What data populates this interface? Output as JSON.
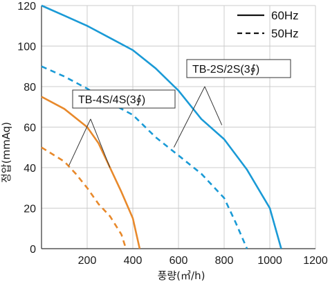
{
  "chart_data": {
    "type": "line",
    "title": "",
    "xlabel": "풍량(㎥/h)",
    "ylabel": "정압(mmAq)",
    "xlim": [
      0,
      1200
    ],
    "ylim": [
      0,
      120
    ],
    "x_ticks": [
      0,
      200,
      400,
      600,
      800,
      1000,
      1200
    ],
    "y_ticks": [
      0,
      20,
      40,
      60,
      80,
      100,
      120
    ],
    "x_tick_labels": [
      "200",
      "400",
      "600",
      "800",
      "1000",
      "1200"
    ],
    "y_tick_labels": [
      "0",
      "20",
      "40",
      "60",
      "80",
      "100",
      "120"
    ],
    "grid": true,
    "legend": {
      "placement": "top-right",
      "entries": [
        {
          "label": "60Hz",
          "style": "solid"
        },
        {
          "label": "50Hz",
          "style": "dashed"
        }
      ]
    },
    "model_labels": [
      {
        "text": "TB-2S/2S(3∮)",
        "color": "#1a9ad6"
      },
      {
        "text": "TB-4S/4S(3∮)",
        "color": "#e8892b"
      }
    ],
    "colors": {
      "tb2s": "#1a9ad6",
      "tb4s": "#e8892b",
      "grid": "#cccccc"
    },
    "series": [
      {
        "group": "TB-2S/2S(3∮)",
        "frequency": "60Hz",
        "style": "solid",
        "color": "#1a9ad6",
        "x": [
          0,
          100,
          200,
          300,
          400,
          500,
          600,
          700,
          800,
          900,
          1000,
          1050
        ],
        "y": [
          120,
          115,
          110,
          104,
          98,
          89,
          78,
          64,
          54,
          39,
          20,
          0
        ]
      },
      {
        "group": "TB-2S/2S(3∮)",
        "frequency": "50Hz",
        "style": "dashed",
        "color": "#1a9ad6",
        "x": [
          0,
          100,
          200,
          300,
          400,
          500,
          600,
          700,
          800,
          850,
          900
        ],
        "y": [
          90,
          85,
          79,
          72,
          66,
          55,
          46,
          37,
          25,
          13,
          0
        ]
      },
      {
        "group": "TB-4S/4S(3∮)",
        "frequency": "60Hz",
        "style": "solid",
        "color": "#e8892b",
        "x": [
          0,
          100,
          200,
          250,
          300,
          350,
          400,
          430
        ],
        "y": [
          75,
          69,
          60,
          52,
          40,
          28,
          15,
          0
        ]
      },
      {
        "group": "TB-4S/4S(3∮)",
        "frequency": "50Hz",
        "style": "dashed",
        "color": "#e8892b",
        "x": [
          0,
          100,
          150,
          200,
          250,
          300,
          350,
          370
        ],
        "y": [
          50,
          43,
          37,
          30,
          22,
          16,
          7,
          0
        ]
      }
    ]
  }
}
